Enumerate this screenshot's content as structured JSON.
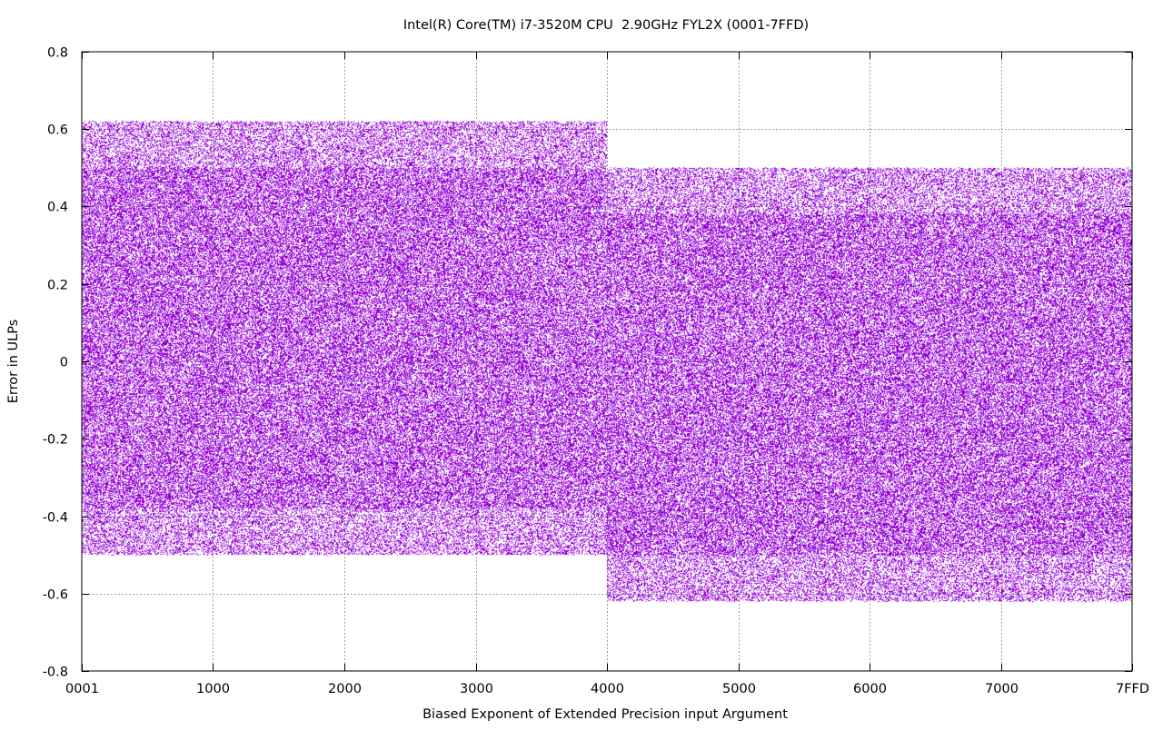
{
  "chart_data": {
    "type": "scatter",
    "title": "Intel(R) Core(TM) i7-3520M CPU  2.90GHz FYL2X (0001-7FFD)",
    "xlabel": "Biased Exponent of Extended Precision input Argument",
    "ylabel": "Error in ULPs",
    "x_axis": {
      "min": 1,
      "max": 32765,
      "ticks": [
        {
          "value": 1,
          "label": "0001"
        },
        {
          "value": 4096,
          "label": "1000"
        },
        {
          "value": 8192,
          "label": "2000"
        },
        {
          "value": 12288,
          "label": "3000"
        },
        {
          "value": 16384,
          "label": "4000"
        },
        {
          "value": 20480,
          "label": "5000"
        },
        {
          "value": 24576,
          "label": "6000"
        },
        {
          "value": 28672,
          "label": "7000"
        },
        {
          "value": 32765,
          "label": "7FFD"
        }
      ]
    },
    "y_axis": {
      "min": -0.8,
      "max": 0.8,
      "ticks": [
        {
          "value": 0.8,
          "label": "0.8"
        },
        {
          "value": 0.6,
          "label": "0.6"
        },
        {
          "value": 0.4,
          "label": "0.4"
        },
        {
          "value": 0.2,
          "label": "0.2"
        },
        {
          "value": 0,
          "label": "0"
        },
        {
          "value": -0.2,
          "label": "-0.2"
        },
        {
          "value": -0.4,
          "label": "-0.4"
        },
        {
          "value": -0.6,
          "label": "-0.6"
        },
        {
          "value": -0.8,
          "label": "-0.8"
        }
      ]
    },
    "grid": true,
    "series": [
      {
        "color": "#9400d3",
        "regions": [
          {
            "x_range": [
              1,
              16383
            ],
            "dense_y_range": [
              -0.38,
              0.5
            ],
            "sparse_y_ranges": [
              [
                0.5,
                0.62
              ],
              [
                -0.5,
                -0.38
              ]
            ]
          },
          {
            "x_range": [
              16384,
              32765
            ],
            "dense_y_range": [
              -0.5,
              0.38
            ],
            "sparse_y_ranges": [
              [
                0.38,
                0.5
              ],
              [
                -0.62,
                -0.5
              ]
            ]
          }
        ]
      }
    ]
  }
}
